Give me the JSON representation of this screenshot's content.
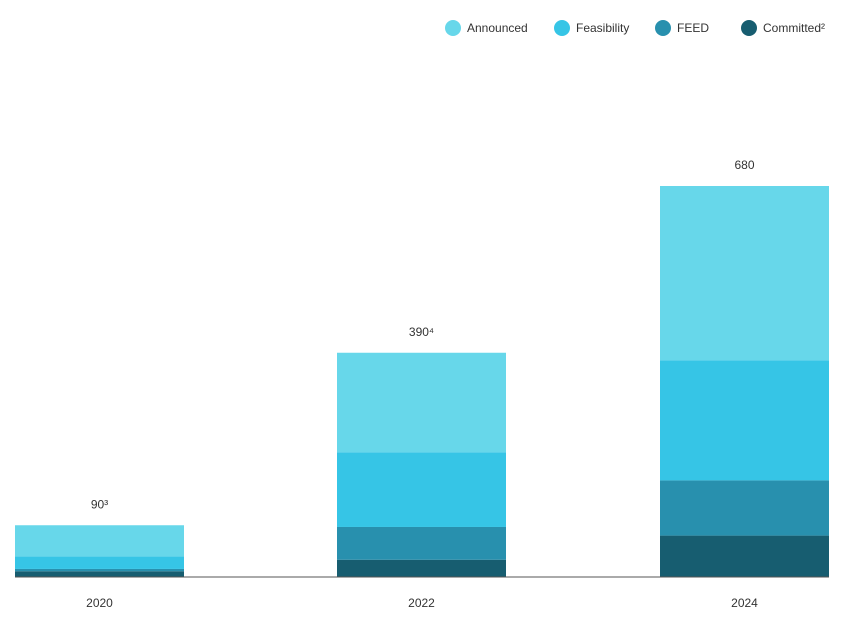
{
  "chart_data": {
    "type": "stacked-bar",
    "categories": [
      "2020",
      "2022",
      "2024"
    ],
    "series": [
      {
        "name": "Committed²",
        "color": "#175d70",
        "values": [
          10,
          30,
          72
        ]
      },
      {
        "name": "FEED",
        "color": "#2890ae",
        "values": [
          4,
          57,
          96
        ]
      },
      {
        "name": "Feasibility",
        "color": "#36c5e6",
        "values": [
          22,
          130,
          209
        ]
      },
      {
        "name": "Announced",
        "color": "#67d7ea",
        "values": [
          54,
          173,
          303
        ]
      }
    ],
    "totals": [
      90,
      390,
      680
    ],
    "total_labels": [
      "90³",
      "390⁴",
      "680"
    ],
    "legend": "top-right"
  }
}
